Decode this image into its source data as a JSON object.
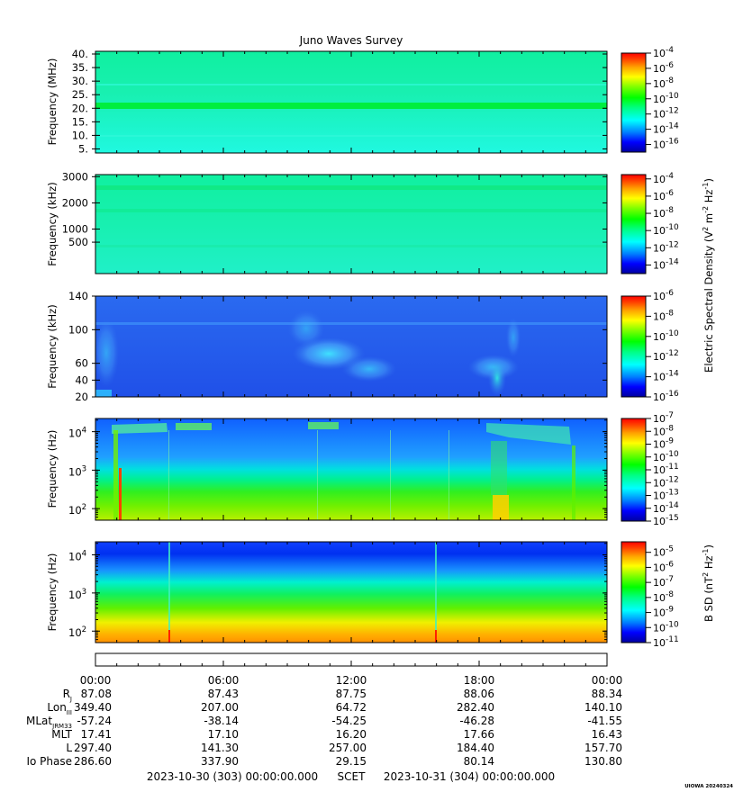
{
  "title": "Juno Waves Survey",
  "colors": {
    "colormap": [
      "#0000a0",
      "#0000ff",
      "#0080ff",
      "#00ffff",
      "#00ff80",
      "#00ff00",
      "#80ff00",
      "#ffff00",
      "#ffa000",
      "#ff4000",
      "#ff0000"
    ]
  },
  "panels": [
    {
      "ylabel": "Frequency (MHz)",
      "yscale": "linear",
      "ylim": [
        3.5,
        41
      ],
      "yticks": [
        {
          "v": 5,
          "label": "5."
        },
        {
          "v": 10,
          "label": "10."
        },
        {
          "v": 15,
          "label": "15."
        },
        {
          "v": 20,
          "label": "20."
        },
        {
          "v": 25,
          "label": "25."
        },
        {
          "v": 30,
          "label": "30."
        },
        {
          "v": 35,
          "label": "35."
        },
        {
          "v": 40,
          "label": "40."
        }
      ],
      "colorbar": {
        "range": [
          -17,
          -4
        ],
        "labels": [
          {
            "exp": -4,
            "text": "10",
            "sup": "-4"
          },
          {
            "exp": -6,
            "text": "10",
            "sup": "-6"
          },
          {
            "exp": -8,
            "text": "10",
            "sup": "-8"
          },
          {
            "exp": -10,
            "text": "10",
            "sup": "-10"
          },
          {
            "exp": -12,
            "text": "10",
            "sup": "-12"
          },
          {
            "exp": -14,
            "text": "10",
            "sup": "-14"
          },
          {
            "exp": -16,
            "text": "10",
            "sup": "-16"
          }
        ]
      }
    },
    {
      "ylabel": "Frequency (kHz)",
      "yscale": "linear",
      "ylim": [
        -700,
        3080
      ],
      "yticks": [
        {
          "v": 500,
          "label": "500"
        },
        {
          "v": 1000,
          "label": "1000"
        },
        {
          "v": 2000,
          "label": "2000"
        },
        {
          "v": 3000,
          "label": "3000"
        }
      ],
      "colorbar": {
        "range": [
          -15,
          -3.5
        ],
        "labels": [
          {
            "exp": -4,
            "text": "10",
            "sup": "-4"
          },
          {
            "exp": -6,
            "text": "10",
            "sup": "-6"
          },
          {
            "exp": -8,
            "text": "10",
            "sup": "-8"
          },
          {
            "exp": -10,
            "text": "10",
            "sup": "-10"
          },
          {
            "exp": -12,
            "text": "10",
            "sup": "-12"
          },
          {
            "exp": -14,
            "text": "10",
            "sup": "-14"
          }
        ]
      }
    },
    {
      "ylabel": "Frequency (kHz)",
      "yscale": "linear",
      "ylim": [
        20,
        140
      ],
      "yticks": [
        {
          "v": 20,
          "label": "20"
        },
        {
          "v": 40,
          "label": "40"
        },
        {
          "v": 60,
          "label": "60"
        },
        {
          "v": 100,
          "label": "100"
        },
        {
          "v": 140,
          "label": "140"
        }
      ],
      "colorbar": {
        "range": [
          -16,
          -6
        ],
        "labels": [
          {
            "exp": -6,
            "text": "10",
            "sup": "-6"
          },
          {
            "exp": -8,
            "text": "10",
            "sup": "-8"
          },
          {
            "exp": -10,
            "text": "10",
            "sup": "-10"
          },
          {
            "exp": -12,
            "text": "10",
            "sup": "-12"
          },
          {
            "exp": -14,
            "text": "10",
            "sup": "-14"
          },
          {
            "exp": -16,
            "text": "10",
            "sup": "-16"
          }
        ]
      }
    },
    {
      "ylabel": "Frequency (Hz)",
      "yscale": "log",
      "ylim": [
        50,
        22000
      ],
      "yticks": [
        {
          "v": 100,
          "label": "10",
          "sup": "2"
        },
        {
          "v": 1000,
          "label": "10",
          "sup": "3"
        },
        {
          "v": 10000,
          "label": "10",
          "sup": "4"
        }
      ],
      "colorbar": {
        "range": [
          -15,
          -7
        ],
        "labels": [
          {
            "exp": -7,
            "text": "10",
            "sup": "-7"
          },
          {
            "exp": -8,
            "text": "10",
            "sup": "-8"
          },
          {
            "exp": -9,
            "text": "10",
            "sup": "-9"
          },
          {
            "exp": -10,
            "text": "10",
            "sup": "-10"
          },
          {
            "exp": -11,
            "text": "10",
            "sup": "-11"
          },
          {
            "exp": -12,
            "text": "10",
            "sup": "-12"
          },
          {
            "exp": -13,
            "text": "10",
            "sup": "-13"
          },
          {
            "exp": -14,
            "text": "10",
            "sup": "-14"
          },
          {
            "exp": -15,
            "text": "10",
            "sup": "-15"
          }
        ]
      }
    },
    {
      "ylabel": "Frequency (Hz)",
      "yscale": "log",
      "ylim": [
        50,
        22000
      ],
      "yticks": [
        {
          "v": 100,
          "label": "10",
          "sup": "2"
        },
        {
          "v": 1000,
          "label": "10",
          "sup": "3"
        },
        {
          "v": 10000,
          "label": "10",
          "sup": "4"
        }
      ],
      "colorbar": {
        "range": [
          -11,
          -4.3
        ],
        "labels": [
          {
            "exp": -5,
            "text": "10",
            "sup": "-5"
          },
          {
            "exp": -6,
            "text": "10",
            "sup": "-6"
          },
          {
            "exp": -7,
            "text": "10",
            "sup": "-7"
          },
          {
            "exp": -8,
            "text": "10",
            "sup": "-8"
          },
          {
            "exp": -9,
            "text": "10",
            "sup": "-9"
          },
          {
            "exp": -10,
            "text": "10",
            "sup": "-10"
          },
          {
            "exp": -11,
            "text": "10",
            "sup": "-11"
          }
        ]
      }
    }
  ],
  "cbar_titles": {
    "e_main": "Electric Spectral Density (V",
    "e_sup1": "2",
    "e_mid": " m",
    "e_sup2": "-2",
    "e_mid2": " Hz",
    "e_sup3": "-1",
    "e_end": ")",
    "b_main": "B SD (nT",
    "b_sup1": "2",
    "b_mid": " Hz",
    "b_sup2": "-1",
    "b_end": ")"
  },
  "xaxis": {
    "range_hours": [
      0,
      24
    ],
    "tick_hours": [
      0,
      6,
      12,
      18,
      24
    ],
    "tick_labels": [
      "00:00",
      "06:00",
      "12:00",
      "18:00",
      "00:00"
    ],
    "minor_step_hours": 1
  },
  "ephemeris": {
    "rows": [
      {
        "label": "R",
        "sub": "J",
        "values": [
          "87.08",
          "87.43",
          "87.75",
          "88.06",
          "88.34"
        ]
      },
      {
        "label": "Lon",
        "sub": "III",
        "values": [
          "349.40",
          "207.00",
          "64.72",
          "282.40",
          "140.10"
        ]
      },
      {
        "label": "MLat",
        "sub": "JRM33",
        "values": [
          "-57.24",
          "-38.14",
          "-54.25",
          "-46.28",
          "-41.55"
        ]
      },
      {
        "label": "MLT",
        "sub": "",
        "values": [
          "17.41",
          "17.10",
          "16.20",
          "17.66",
          "16.43"
        ]
      },
      {
        "label": "L",
        "sub": "",
        "values": [
          "297.40",
          "141.30",
          "257.00",
          "184.40",
          "157.70"
        ]
      },
      {
        "label": "Io Phase",
        "sub": "",
        "values": [
          "286.60",
          "337.90",
          "29.15",
          "80.14",
          "130.80"
        ]
      }
    ]
  },
  "footer": {
    "start": "2023-10-30 (303) 00:00:00.000",
    "scet": "SCET",
    "end": "2023-10-31 (304) 00:00:00.000",
    "credit": "UIOWA 20240324"
  }
}
